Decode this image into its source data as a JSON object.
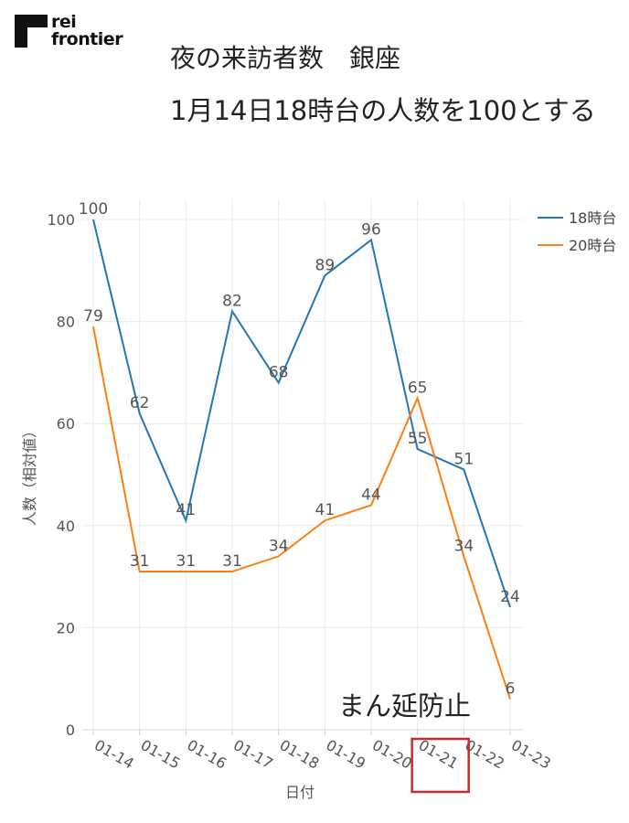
{
  "logo": {
    "line1": "rei",
    "line2": "frontier"
  },
  "title_line1": "夜の来訪者数　銀座",
  "title_line2": "1月14日18時台の人数を100とする",
  "chart_data": {
    "type": "line",
    "x": [
      "01-14",
      "01-15",
      "01-16",
      "01-17",
      "01-18",
      "01-19",
      "01-20",
      "01-21",
      "01-22",
      "01-23"
    ],
    "series": [
      {
        "name": "18時台",
        "color": "#1f77b4",
        "values": [
          100,
          62,
          41,
          82,
          68,
          89,
          96,
          55,
          51,
          24
        ]
      },
      {
        "name": "20時台",
        "color": "#ff7f0e",
        "values": [
          79,
          31,
          31,
          31,
          34,
          41,
          44,
          65,
          34,
          6
        ]
      }
    ],
    "xlabel": "日付",
    "ylabel": "人数（相対値）",
    "ylim": [
      0,
      100
    ],
    "yticks": [
      0,
      20,
      40,
      60,
      80,
      100
    ],
    "grid": true,
    "legend_position": "top-right",
    "annotation": "まん延防止",
    "highlight_category": "01-21",
    "highlight_color": "#d62728"
  }
}
